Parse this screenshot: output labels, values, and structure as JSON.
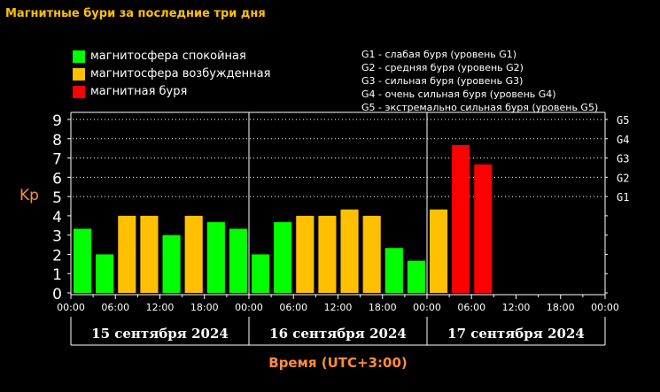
{
  "title": "Магнитные бури за последние три дня",
  "legend": [
    {
      "label": "магнитосфера спокойная",
      "color": "#00ff00"
    },
    {
      "label": "магнитосфера возбужденная",
      "color": "#ffc000"
    },
    {
      "label": "магнитная буря",
      "color": "#ff0000"
    }
  ],
  "storm_levels": [
    "G1 - слабая буря (уровень G1)",
    "G2 - средняя буря (уровень G2)",
    "G3 - сильная буря (уровень G3)",
    "G4 - очень сильная буря (уровень G4)",
    "G5 - экстремально сильная буря (уровень G5)"
  ],
  "chart_data": {
    "type": "bar",
    "ylabel": "Kp",
    "xlabel": "Время (UTC+3:00)",
    "ylim": [
      0,
      9
    ],
    "yticks": [
      "0",
      "1",
      "2",
      "3",
      "4",
      "5",
      "6",
      "7",
      "8",
      "9"
    ],
    "right_ticks": [
      {
        "label": "G1",
        "kp": 5
      },
      {
        "label": "G2",
        "kp": 6
      },
      {
        "label": "G3",
        "kp": 7
      },
      {
        "label": "G4",
        "kp": 8
      },
      {
        "label": "G5",
        "kp": 9
      }
    ],
    "xticks": [
      "00:00",
      "06:00",
      "12:00",
      "18:00",
      "00:00",
      "06:00",
      "12:00",
      "18:00",
      "00:00",
      "06:00",
      "12:00",
      "18:00",
      "00:00"
    ],
    "days": [
      "15 сентября 2024",
      "16 сентября 2024",
      "17 сентября 2024"
    ],
    "grid": "dotted horizontal at Kp 5-9",
    "values": [
      3.33,
      2,
      4,
      4,
      3,
      4,
      3.67,
      3.33,
      2,
      3.67,
      4,
      4,
      4.33,
      4,
      2.33,
      1.67,
      4.33,
      7.67,
      6.67
    ],
    "colors": [
      "#00ff00",
      "#00ff00",
      "#ffc000",
      "#ffc000",
      "#00ff00",
      "#ffc000",
      "#00ff00",
      "#00ff00",
      "#00ff00",
      "#00ff00",
      "#ffc000",
      "#ffc000",
      "#ffc000",
      "#ffc000",
      "#00ff00",
      "#00ff00",
      "#ffc000",
      "#ff0000",
      "#ff0000"
    ]
  }
}
